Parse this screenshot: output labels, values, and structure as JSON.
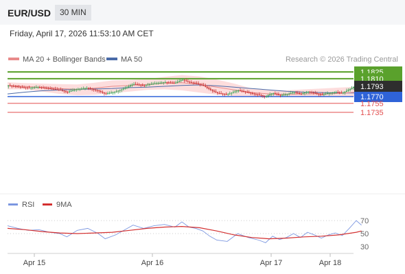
{
  "header": {
    "pair": "EUR/USD",
    "timeframe": "30 MIN"
  },
  "timestamp": "Friday, April 17, 2026 11:53:10 AM CET",
  "legend": {
    "ma20_label": "MA 20 + Bollinger Bands",
    "ma50_label": "MA 50",
    "source": "Research © 2026 Trading Central"
  },
  "colors": {
    "candle_up": "#33a353",
    "candle_down": "#c62828",
    "bollinger_fill": "#fcd4d4",
    "ma20": "#e88a8a",
    "ma50": "#4a6aa8",
    "resistance": "#5aa12c",
    "pivot": "#2f63d8",
    "support": "#e24c4c",
    "rsi": "#7b96e0",
    "rsi_ma": "#d32f2f",
    "arrow": "#2d67b7"
  },
  "chart_data": [
    {
      "type": "candlestick",
      "title": "EUR/USD",
      "timeframe": "30 MIN",
      "ylim": [
        1.1728,
        1.1832
      ],
      "x_ticks": [
        "Apr 15",
        "Apr 16",
        "Apr 17",
        "Apr 18"
      ],
      "current_price": "1.1793",
      "levels": [
        {
          "label": "1.1825",
          "value": 1.1825,
          "kind": "resistance"
        },
        {
          "label": "1.1810",
          "value": 1.181,
          "kind": "resistance"
        },
        {
          "label": "1.1770",
          "value": 1.177,
          "kind": "pivot"
        },
        {
          "label": "1.1755",
          "value": 1.1755,
          "kind": "support"
        },
        {
          "label": "1.1735",
          "value": 1.1735,
          "kind": "support"
        }
      ],
      "ma20": [
        [
          0,
          1.1794
        ],
        [
          10,
          1.1793
        ],
        [
          20,
          1.179
        ],
        [
          30,
          1.1788
        ],
        [
          40,
          1.1786
        ],
        [
          50,
          1.1789
        ],
        [
          60,
          1.1793
        ],
        [
          70,
          1.1795
        ],
        [
          80,
          1.1797
        ],
        [
          90,
          1.18
        ],
        [
          100,
          1.1801
        ],
        [
          110,
          1.1797
        ],
        [
          120,
          1.1791
        ],
        [
          130,
          1.1785
        ],
        [
          140,
          1.1779
        ],
        [
          150,
          1.1776
        ],
        [
          160,
          1.1775
        ],
        [
          170,
          1.1776
        ],
        [
          180,
          1.1776
        ],
        [
          190,
          1.1777
        ],
        [
          200,
          1.178
        ]
      ],
      "bollinger_upper": [
        [
          0,
          1.1802
        ],
        [
          10,
          1.18
        ],
        [
          20,
          1.1799
        ],
        [
          30,
          1.1798
        ],
        [
          40,
          1.1797
        ],
        [
          50,
          1.1801
        ],
        [
          60,
          1.1806
        ],
        [
          70,
          1.1807
        ],
        [
          80,
          1.1809
        ],
        [
          90,
          1.1814
        ],
        [
          100,
          1.1818
        ],
        [
          110,
          1.1815
        ],
        [
          120,
          1.1808
        ],
        [
          130,
          1.1799
        ],
        [
          140,
          1.1788
        ],
        [
          150,
          1.1785
        ],
        [
          160,
          1.1784
        ],
        [
          170,
          1.1786
        ],
        [
          180,
          1.1788
        ],
        [
          190,
          1.179
        ],
        [
          200,
          1.1792
        ]
      ],
      "bollinger_lower": [
        [
          0,
          1.1786
        ],
        [
          10,
          1.1786
        ],
        [
          20,
          1.1781
        ],
        [
          30,
          1.1776
        ],
        [
          40,
          1.1773
        ],
        [
          50,
          1.1774
        ],
        [
          60,
          1.1778
        ],
        [
          70,
          1.1781
        ],
        [
          80,
          1.1785
        ],
        [
          90,
          1.1786
        ],
        [
          100,
          1.1784
        ],
        [
          110,
          1.1779
        ],
        [
          120,
          1.1774
        ],
        [
          130,
          1.1771
        ],
        [
          140,
          1.1769
        ],
        [
          150,
          1.1769
        ],
        [
          160,
          1.177
        ],
        [
          170,
          1.177
        ],
        [
          180,
          1.1769
        ],
        [
          190,
          1.177
        ],
        [
          200,
          1.1769
        ]
      ],
      "ma50": [
        [
          0,
          1.1776
        ],
        [
          10,
          1.178
        ],
        [
          20,
          1.1783
        ],
        [
          30,
          1.1785
        ],
        [
          40,
          1.1786
        ],
        [
          50,
          1.1787
        ],
        [
          60,
          1.1788
        ],
        [
          70,
          1.179
        ],
        [
          80,
          1.1791
        ],
        [
          90,
          1.1793
        ],
        [
          100,
          1.1795
        ],
        [
          110,
          1.1796
        ],
        [
          120,
          1.1794
        ],
        [
          130,
          1.1791
        ],
        [
          140,
          1.1788
        ],
        [
          150,
          1.1785
        ],
        [
          160,
          1.1782
        ],
        [
          170,
          1.178
        ],
        [
          180,
          1.1779
        ],
        [
          190,
          1.1778
        ],
        [
          200,
          1.1778
        ]
      ],
      "price_path": [
        [
          0,
          1.1795
        ],
        [
          6,
          1.1792
        ],
        [
          12,
          1.179
        ],
        [
          18,
          1.1791
        ],
        [
          24,
          1.1788
        ],
        [
          30,
          1.1785
        ],
        [
          34,
          1.178
        ],
        [
          40,
          1.1787
        ],
        [
          46,
          1.1789
        ],
        [
          52,
          1.1783
        ],
        [
          56,
          1.1776
        ],
        [
          62,
          1.1781
        ],
        [
          68,
          1.179
        ],
        [
          72,
          1.1798
        ],
        [
          78,
          1.1795
        ],
        [
          84,
          1.1799
        ],
        [
          90,
          1.1802
        ],
        [
          96,
          1.18
        ],
        [
          100,
          1.1808
        ],
        [
          104,
          1.1802
        ],
        [
          108,
          1.18
        ],
        [
          112,
          1.1795
        ],
        [
          116,
          1.1786
        ],
        [
          120,
          1.1778
        ],
        [
          126,
          1.1775
        ],
        [
          132,
          1.1784
        ],
        [
          138,
          1.1779
        ],
        [
          144,
          1.1774
        ],
        [
          148,
          1.177
        ],
        [
          152,
          1.1778
        ],
        [
          156,
          1.1773
        ],
        [
          160,
          1.1775
        ],
        [
          164,
          1.178
        ],
        [
          168,
          1.1776
        ],
        [
          172,
          1.1781
        ],
        [
          176,
          1.1778
        ],
        [
          180,
          1.1774
        ],
        [
          184,
          1.1778
        ],
        [
          188,
          1.178
        ],
        [
          192,
          1.1778
        ],
        [
          196,
          1.1786
        ],
        [
          200,
          1.1795
        ],
        [
          203,
          1.1793
        ]
      ],
      "forecast_arrow": {
        "from": [
          203,
          1.1794
        ],
        "to": [
          216,
          1.1824
        ]
      }
    },
    {
      "type": "line",
      "title": "RSI",
      "series": [
        {
          "name": "RSI"
        },
        {
          "name": "9MA"
        }
      ],
      "ylim": [
        25,
        75
      ],
      "y_ticks": [
        "70",
        "50",
        "30"
      ],
      "rsi": [
        [
          0,
          62
        ],
        [
          6,
          58
        ],
        [
          12,
          55
        ],
        [
          18,
          56
        ],
        [
          24,
          52
        ],
        [
          30,
          50
        ],
        [
          34,
          45
        ],
        [
          40,
          55
        ],
        [
          46,
          58
        ],
        [
          52,
          50
        ],
        [
          56,
          42
        ],
        [
          62,
          48
        ],
        [
          68,
          57
        ],
        [
          72,
          63
        ],
        [
          78,
          58
        ],
        [
          84,
          62
        ],
        [
          90,
          64
        ],
        [
          96,
          60
        ],
        [
          100,
          68
        ],
        [
          104,
          60
        ],
        [
          108,
          58
        ],
        [
          112,
          54
        ],
        [
          116,
          46
        ],
        [
          120,
          40
        ],
        [
          126,
          38
        ],
        [
          132,
          50
        ],
        [
          138,
          44
        ],
        [
          144,
          40
        ],
        [
          148,
          36
        ],
        [
          152,
          46
        ],
        [
          156,
          41
        ],
        [
          160,
          44
        ],
        [
          164,
          50
        ],
        [
          168,
          44
        ],
        [
          172,
          52
        ],
        [
          176,
          48
        ],
        [
          180,
          43
        ],
        [
          184,
          48
        ],
        [
          188,
          51
        ],
        [
          192,
          47
        ],
        [
          196,
          58
        ],
        [
          200,
          70
        ],
        [
          203,
          63
        ]
      ],
      "rsi_ma": [
        [
          0,
          58
        ],
        [
          10,
          56
        ],
        [
          20,
          53
        ],
        [
          30,
          51
        ],
        [
          40,
          50
        ],
        [
          50,
          51
        ],
        [
          60,
          52
        ],
        [
          70,
          55
        ],
        [
          80,
          58
        ],
        [
          90,
          60
        ],
        [
          100,
          61
        ],
        [
          110,
          59
        ],
        [
          120,
          54
        ],
        [
          130,
          48
        ],
        [
          140,
          44
        ],
        [
          150,
          42
        ],
        [
          160,
          43
        ],
        [
          170,
          45
        ],
        [
          180,
          46
        ],
        [
          190,
          48
        ],
        [
          200,
          52
        ],
        [
          203,
          54
        ]
      ]
    }
  ]
}
